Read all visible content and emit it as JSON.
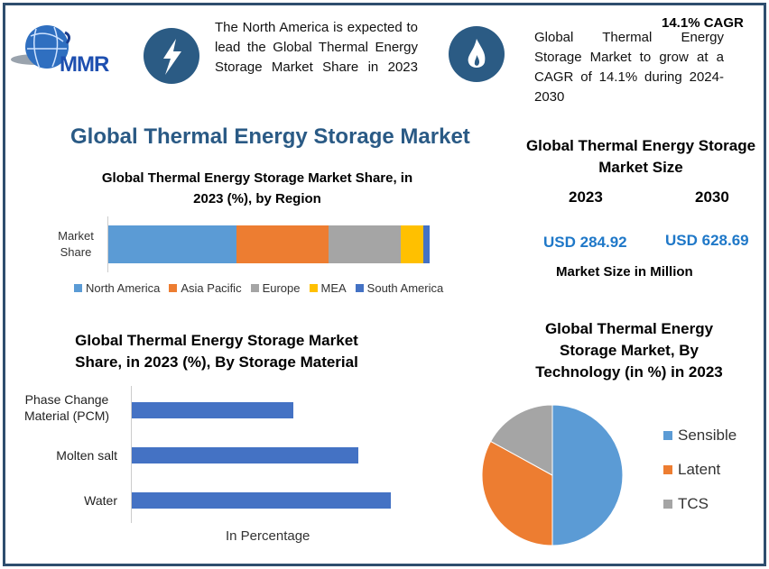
{
  "header": {
    "logo_text": "MMR",
    "left_text": "The North America is expected to lead the Global Thermal Energy Storage Market Share in 2023",
    "cagr_badge": "14.1% CAGR",
    "right_text": "Global Thermal Energy Storage Market to grow at a CAGR of 14.1% during 2024-2030",
    "icons": [
      "lightning-icon",
      "flame-icon"
    ]
  },
  "main_title": "Global Thermal Energy Storage Market",
  "market_size": {
    "title": "Global Thermal Energy Storage Market Size",
    "year1": "2023",
    "year2": "2030",
    "value1": "USD 284.92",
    "value2": "USD 628.69",
    "caption": "Market Size in Million"
  },
  "chart_data": [
    {
      "type": "bar",
      "orientation": "horizontal-stacked",
      "title": "Global Thermal Energy Storage Market Share, in 2023 (%), by Region",
      "categories": [
        "Market Share"
      ],
      "series": [
        {
          "name": "North America",
          "values": [
            40
          ],
          "color": "#5b9bd5"
        },
        {
          "name": "Asia Pacific",
          "values": [
            28.5
          ],
          "color": "#ed7d31"
        },
        {
          "name": "Europe",
          "values": [
            22.5
          ],
          "color": "#a5a5a5"
        },
        {
          "name": "MEA",
          "values": [
            7
          ],
          "color": "#ffc000"
        },
        {
          "name": "South America",
          "values": [
            2
          ],
          "color": "#4472c4"
        }
      ],
      "legend": "bottom"
    },
    {
      "type": "bar",
      "orientation": "horizontal",
      "title": "Global Thermal Energy Storage Market Share, in 2023 (%), By Storage Material",
      "categories": [
        "Phase Change Material (PCM)",
        "Molten salt",
        "Water"
      ],
      "values": [
        25,
        35,
        40
      ],
      "xlabel": "In Percentage",
      "color": "#4472c4"
    },
    {
      "type": "pie",
      "title": "Global Thermal Energy Storage Market, By Technology (in %) in 2023",
      "categories": [
        "Sensible",
        "Latent",
        "TCS"
      ],
      "values": [
        50,
        33,
        17
      ],
      "colors": [
        "#5b9bd5",
        "#ed7d31",
        "#a5a5a5"
      ],
      "legend": "right"
    }
  ]
}
